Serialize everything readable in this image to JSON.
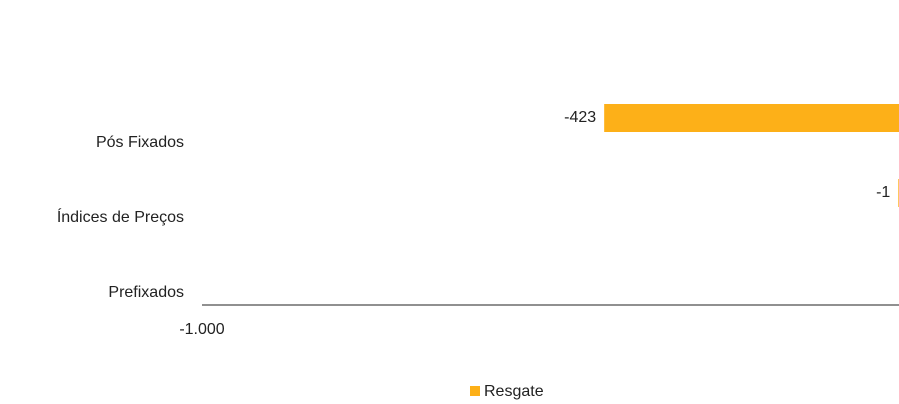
{
  "chart_data": {
    "type": "hbar",
    "categories": [
      "Pós Fixados",
      "Índices de Preços",
      "Prefixados"
    ],
    "series": [
      {
        "name": "Resgate",
        "color": "#fdb018",
        "values": [
          -423,
          -1,
          null
        ]
      }
    ],
    "xlim": [
      -1000,
      0
    ],
    "xticks": [
      {
        "value": -1000,
        "label": "-1.000"
      }
    ],
    "legend": "bottom"
  }
}
